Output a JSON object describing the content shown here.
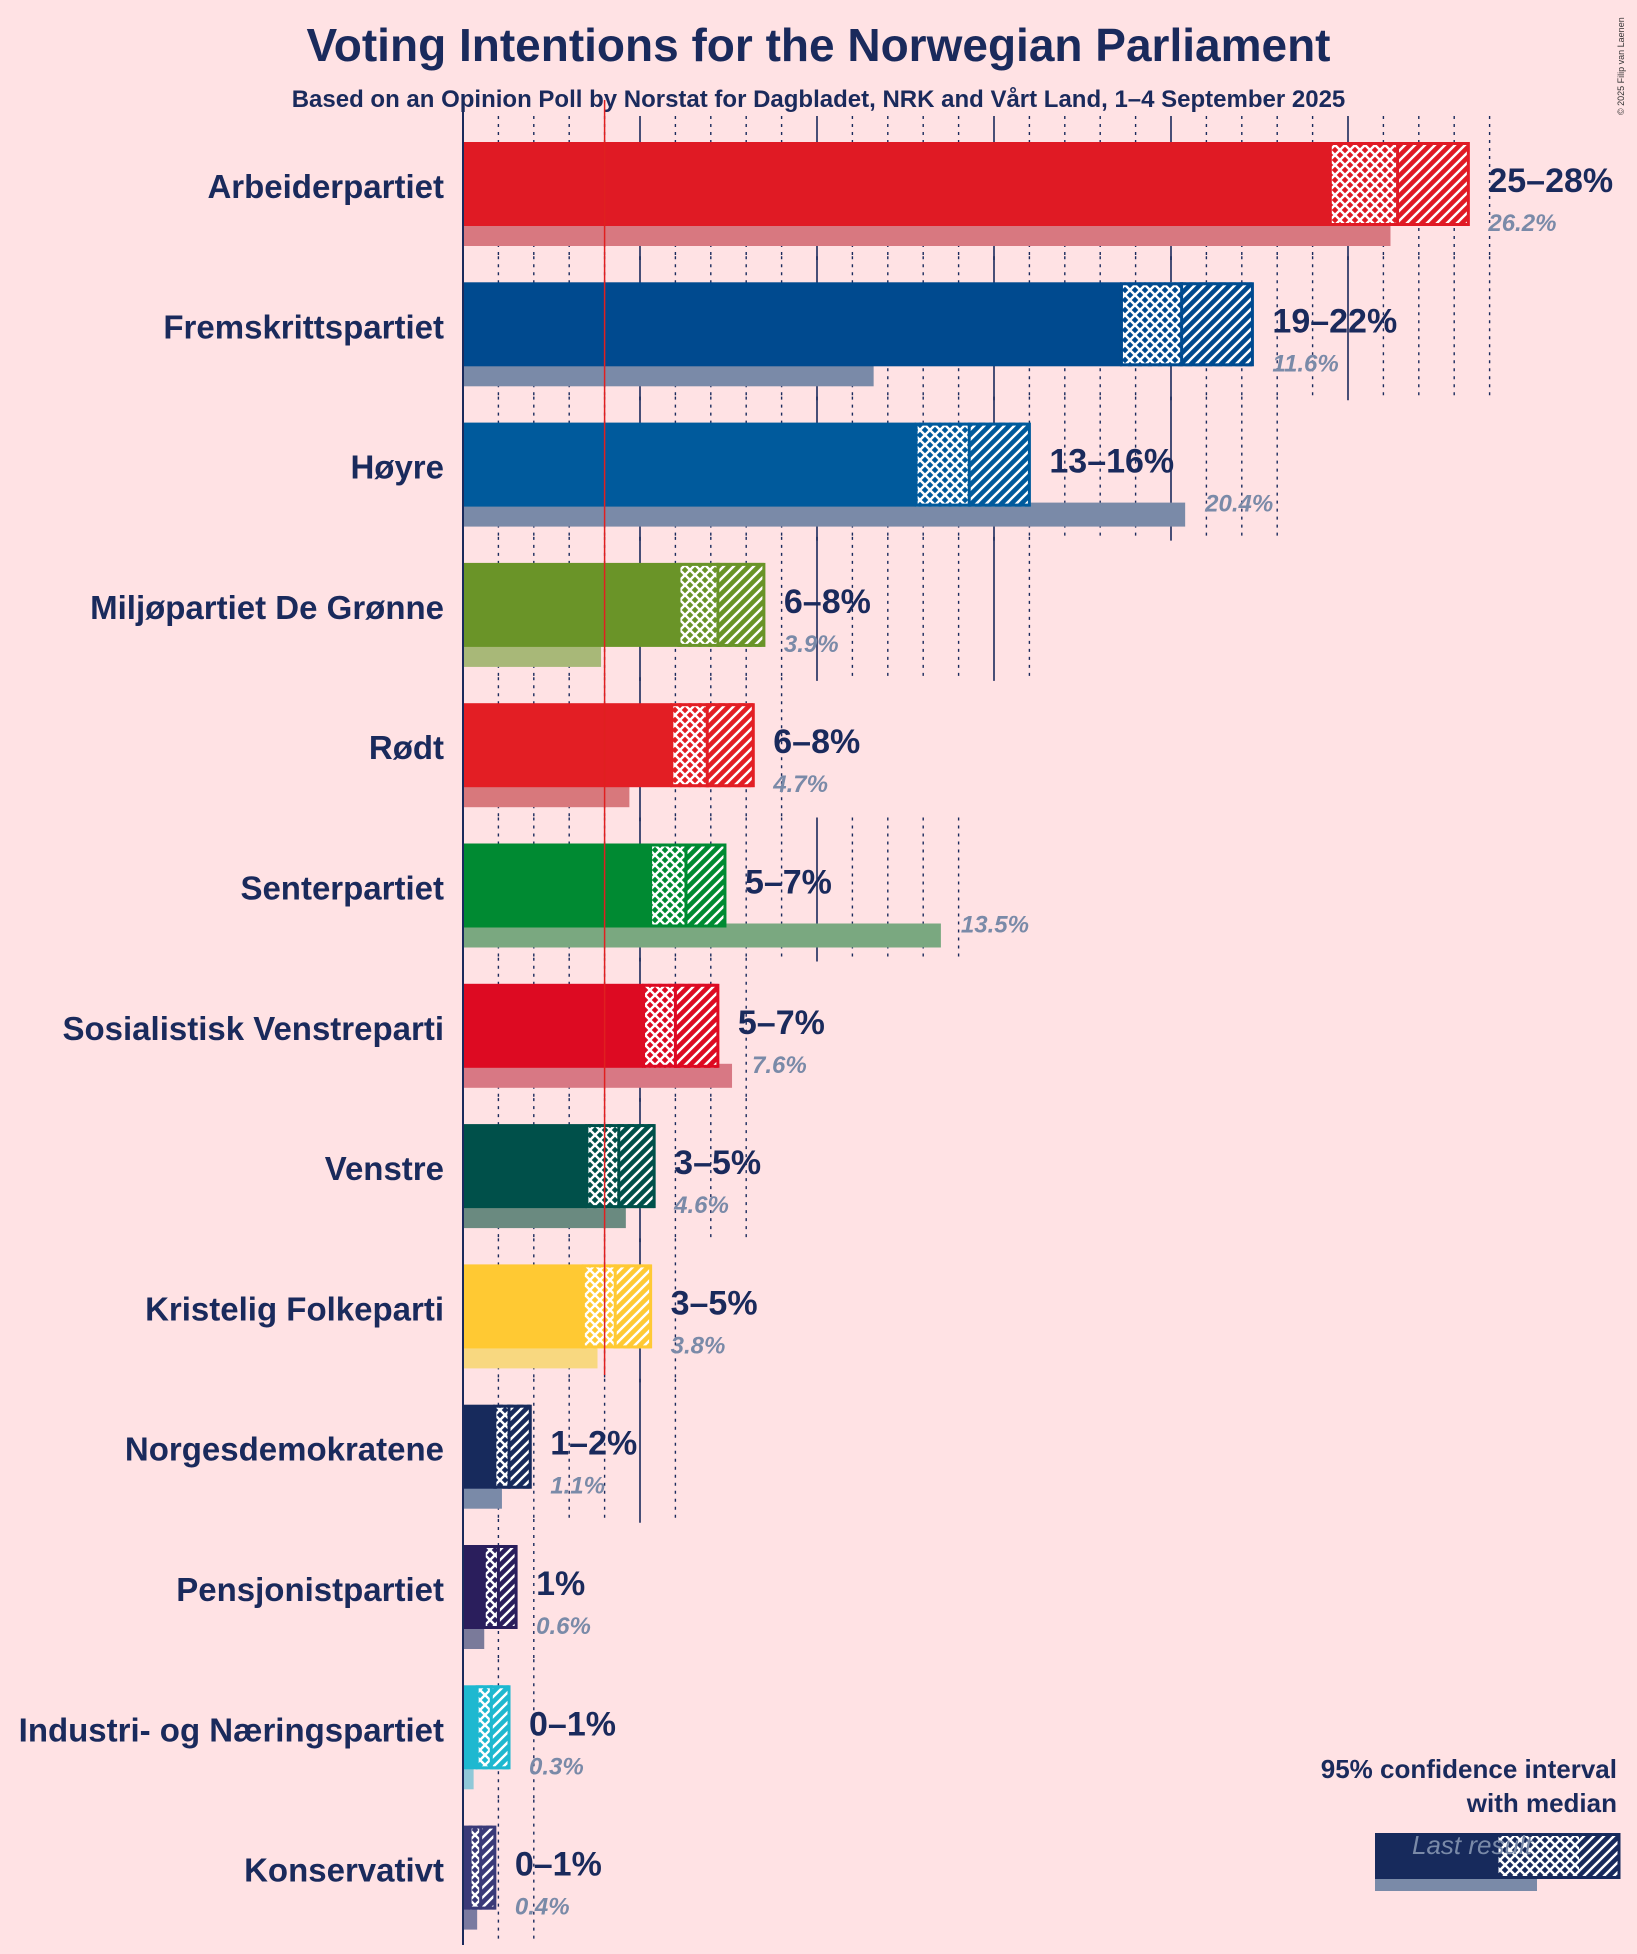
{
  "title": "Voting Intentions for the Norwegian Parliament",
  "subtitle": "Based on an Opinion Poll by Norstat for Dagbladet, NRK and Vårt Land, 1–4 September 2025",
  "copyright": "© 2025 Filip van Laenen",
  "legend": {
    "title_line1": "95% confidence interval",
    "title_line2": "with median",
    "last_result_label": "Last result"
  },
  "chart_data": {
    "type": "bar",
    "orientation": "horizontal",
    "x_unit": "%",
    "threshold": 4,
    "categories": [
      "Arbeiderpartiet",
      "Fremskrittspartiet",
      "Høyre",
      "Miljøpartiet De Grønne",
      "Rødt",
      "Senterpartiet",
      "Sosialistisk Venstreparti",
      "Venstre",
      "Kristelig Folkeparti",
      "Norgesdemokratene",
      "Pensjonistpartiet",
      "Industri- og Næringspartiet",
      "Konservativt"
    ],
    "series": [
      {
        "name": "95% confidence interval low",
        "values": [
          24.5,
          18.6,
          12.8,
          6.1,
          5.9,
          5.3,
          5.1,
          3.5,
          3.4,
          0.9,
          0.6,
          0.4,
          0.2
        ]
      },
      {
        "name": "Median",
        "values": [
          26.4,
          20.3,
          14.3,
          7.2,
          6.9,
          6.3,
          6.0,
          4.4,
          4.3,
          1.3,
          1.0,
          0.8,
          0.5
        ]
      },
      {
        "name": "95% confidence interval high",
        "values": [
          28.4,
          22.3,
          16.0,
          8.5,
          8.2,
          7.4,
          7.2,
          5.4,
          5.3,
          1.9,
          1.5,
          1.3,
          0.9
        ]
      },
      {
        "name": "Last result",
        "values": [
          26.2,
          11.6,
          20.4,
          3.9,
          4.7,
          13.5,
          7.6,
          4.6,
          3.8,
          1.1,
          0.6,
          0.3,
          0.4
        ]
      }
    ],
    "range_labels": [
      "25–28%",
      "19–22%",
      "13–16%",
      "6–8%",
      "6–8%",
      "5–7%",
      "5–7%",
      "3–5%",
      "3–5%",
      "1–2%",
      "1%",
      "0–1%",
      "0–1%"
    ],
    "last_labels": [
      "26.2%",
      "11.6%",
      "20.4%",
      "3.9%",
      "4.7%",
      "13.5%",
      "7.6%",
      "4.6%",
      "3.8%",
      "1.1%",
      "0.6%",
      "0.3%",
      "0.4%"
    ],
    "colors": [
      "#E01A24",
      "#004A8F",
      "#005A9C",
      "#6A9428",
      "#E31E24",
      "#008A32",
      "#DD0A22",
      "#00504A",
      "#FFC933",
      "#172A5C",
      "#2A1E5C",
      "#1EB8D0",
      "#3A3A78"
    ],
    "last_colors": [
      "#D87880",
      "#7A8AA8",
      "#7A8AA8",
      "#A8B878",
      "#D8787C",
      "#7AA880",
      "#D87884",
      "#6A8A80",
      "#F8D880",
      "#7A8AA8",
      "#7A7A9A",
      "#90C8D8",
      "#7A7AA0"
    ],
    "legend_placement": "bottom-right"
  }
}
